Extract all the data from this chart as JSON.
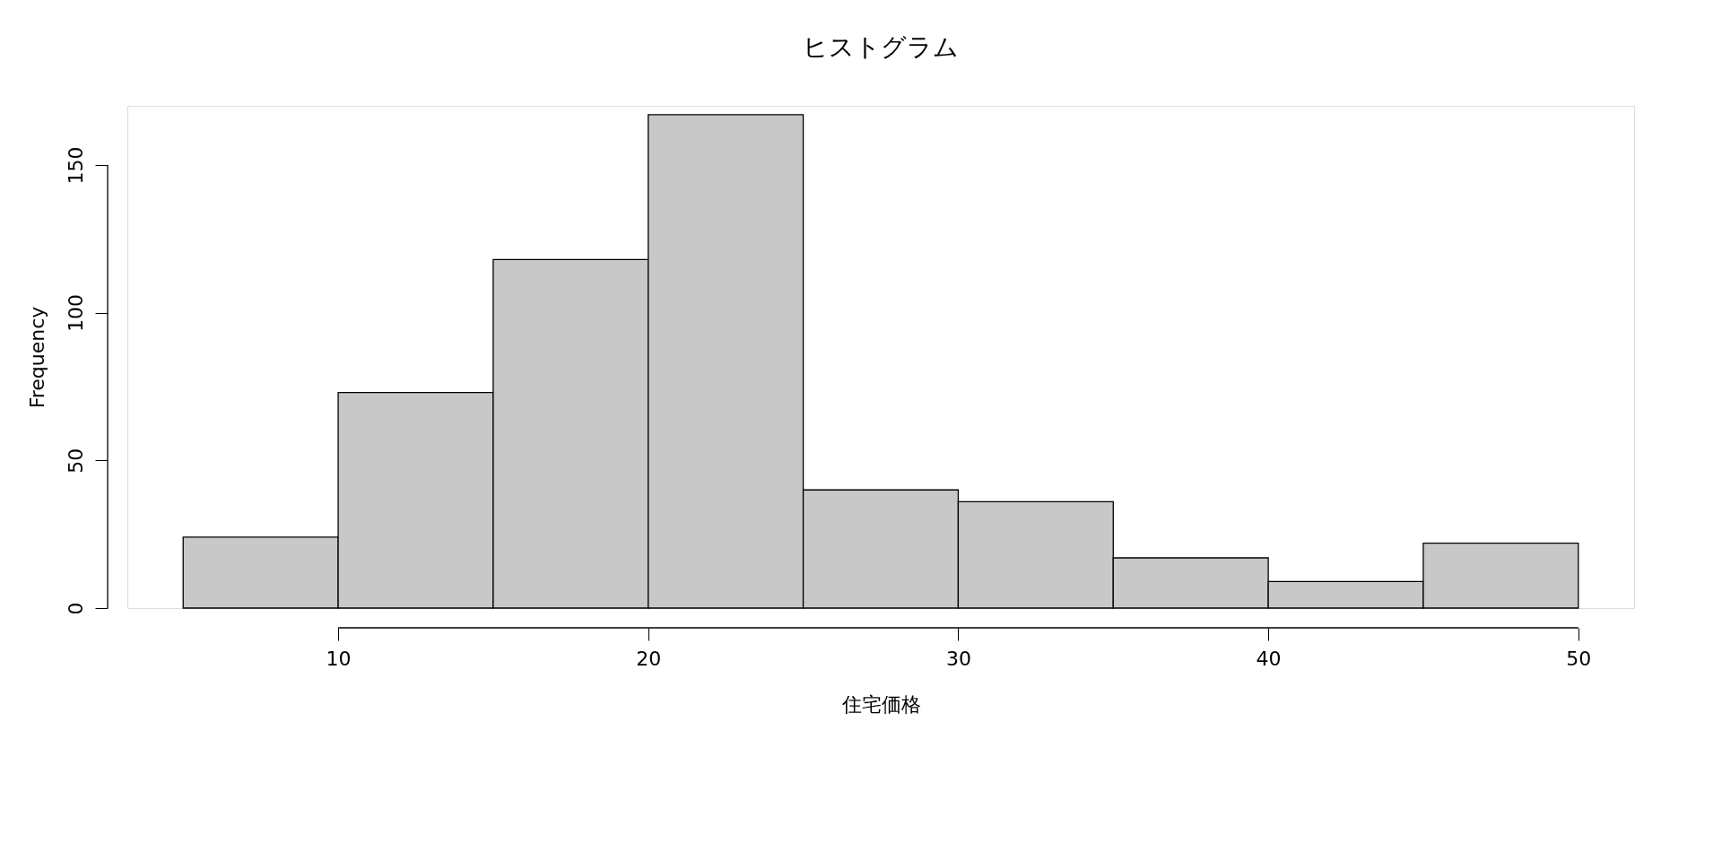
{
  "chart_data": {
    "type": "histogram",
    "title": "ヒストグラム",
    "xlabel": "住宅価格",
    "ylabel": "Frequency",
    "bins": [
      5,
      10,
      15,
      20,
      25,
      30,
      35,
      40,
      45,
      50
    ],
    "values": [
      24,
      73,
      118,
      167,
      40,
      36,
      17,
      9,
      22
    ],
    "color": "#c8c8c8",
    "xlim": [
      3.2,
      51.8
    ],
    "ylim": [
      0,
      170
    ],
    "xticks": [
      10,
      20,
      30,
      40,
      50
    ],
    "yticks": [
      0,
      50,
      100,
      150
    ],
    "grid": false
  }
}
